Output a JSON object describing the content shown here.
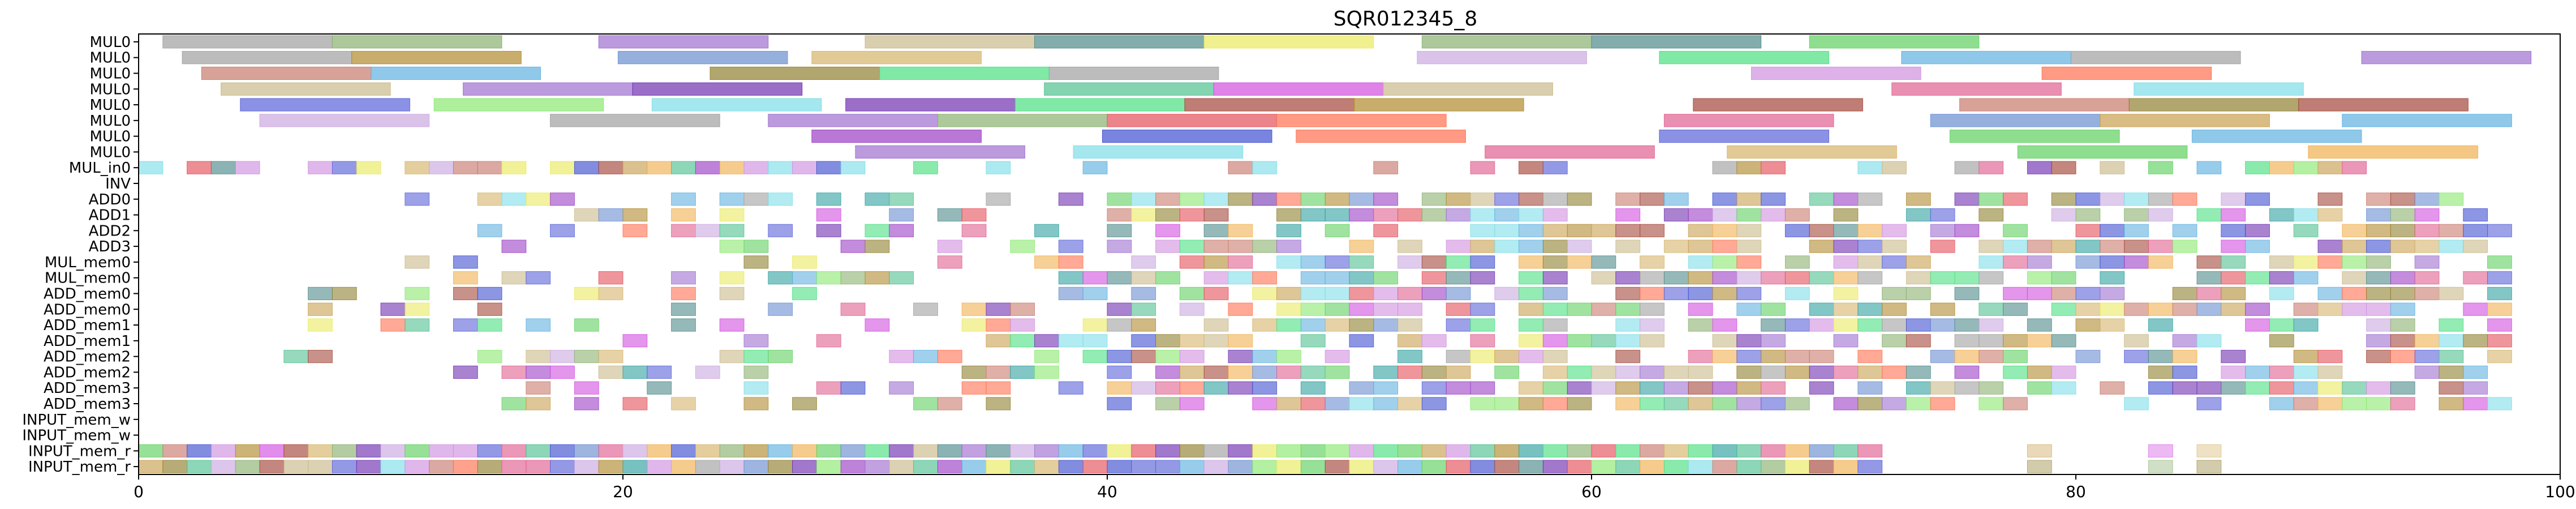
{
  "chart_data": {
    "type": "gantt",
    "title": "SQR012345_8",
    "xlim": [
      0,
      100
    ],
    "xticks": [
      0,
      20,
      40,
      60,
      80,
      100
    ],
    "rows": [
      "MUL0",
      "MUL0",
      "MUL0",
      "MUL0",
      "MUL0",
      "MUL0",
      "MUL0",
      "MUL0",
      "MUL_in0",
      "INV",
      "ADD0",
      "ADD1",
      "ADD2",
      "ADD3",
      "MUL_mem0",
      "MUL_mem0",
      "ADD_mem0",
      "ADD_mem0",
      "ADD_mem1",
      "ADD_mem1",
      "ADD_mem2",
      "ADD_mem2",
      "ADD_mem3",
      "ADD_mem3",
      "INPUT_mem_w",
      "INPUT_mem_w",
      "INPUT_mem_r",
      "INPUT_mem_r"
    ],
    "seed": 8
  }
}
